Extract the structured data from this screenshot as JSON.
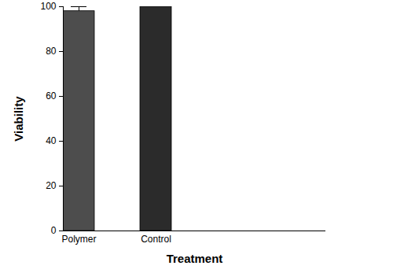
{
  "chart_data": {
    "type": "bar",
    "categories": [
      "Polymer",
      "Control"
    ],
    "values": [
      98,
      100
    ],
    "errors": [
      2,
      0
    ],
    "colors": [
      "#4d4d4d",
      "#2b2b2b"
    ],
    "x_label": "Treatment",
    "y_label": "Viability",
    "ylim": [
      0,
      100
    ],
    "yticks": [
      0,
      20,
      40,
      60,
      80,
      100
    ],
    "grid": false
  }
}
